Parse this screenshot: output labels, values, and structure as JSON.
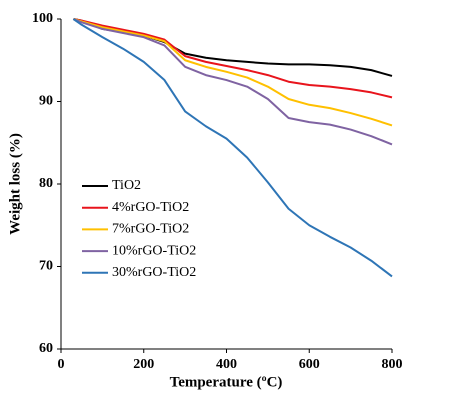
{
  "chart_data": {
    "type": "line",
    "xlabel": "Temperature (ºC)",
    "ylabel": "Weight loss (%)",
    "x": [
      30,
      50,
      100,
      150,
      200,
      250,
      300,
      350,
      400,
      450,
      500,
      550,
      600,
      650,
      700,
      750,
      800
    ],
    "series": [
      {
        "name": "TiO2",
        "color": "#000000",
        "values": [
          100,
          99.8,
          98.8,
          98.4,
          98,
          97.2,
          95.8,
          95.3,
          95,
          94.8,
          94.6,
          94.5,
          94.5,
          94.4,
          94.2,
          93.8,
          93.1
        ]
      },
      {
        "name": "4%rGO-TiO2",
        "color": "#e8141c",
        "values": [
          100,
          99.8,
          99.2,
          98.7,
          98.2,
          97.5,
          95.5,
          94.8,
          94.3,
          93.8,
          93.2,
          92.4,
          92,
          91.8,
          91.5,
          91.1,
          90.5
        ]
      },
      {
        "name": "7%rGO-TiO2",
        "color": "#ffc000",
        "values": [
          100,
          99.7,
          99,
          98.5,
          98,
          97.3,
          95,
          94.2,
          93.6,
          92.9,
          91.8,
          90.3,
          89.6,
          89.2,
          88.6,
          87.9,
          87.1
        ]
      },
      {
        "name": "10%rGO-TiO2",
        "color": "#7f63a2",
        "values": [
          100,
          99.6,
          98.8,
          98.3,
          97.8,
          96.8,
          94.2,
          93.2,
          92.6,
          91.8,
          90.3,
          88,
          87.5,
          87.2,
          86.6,
          85.8,
          84.8
        ]
      },
      {
        "name": "30%rGO-TiO2",
        "color": "#2e75b6",
        "values": [
          100,
          99.3,
          97.8,
          96.4,
          94.8,
          92.6,
          88.8,
          87,
          85.5,
          83.2,
          80.2,
          77,
          75,
          73.6,
          72.3,
          70.7,
          68.8
        ]
      }
    ],
    "xlim": [
      0,
      800
    ],
    "xticks": [
      0,
      200,
      400,
      600,
      800
    ],
    "ylim": [
      60,
      100
    ],
    "yticks": [
      60,
      70,
      80,
      90,
      100
    ],
    "grid": false,
    "legend": "center left"
  }
}
